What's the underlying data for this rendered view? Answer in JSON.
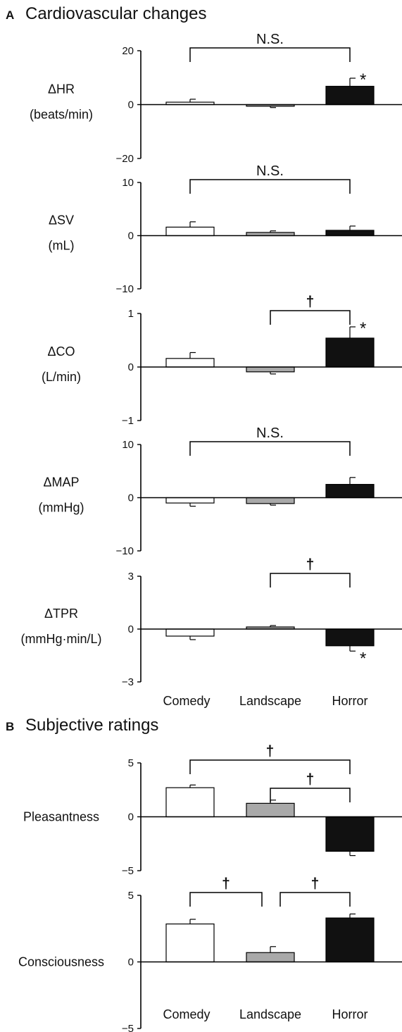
{
  "sections": [
    {
      "letter": "A",
      "title": "Cardiovascular changes"
    },
    {
      "letter": "B",
      "title": "Subjective ratings"
    }
  ],
  "colors": {
    "comedy": "#ffffff",
    "landscape": "#a9a9a9",
    "horror": "#111111",
    "axis": "#000000"
  },
  "chart_data": [
    {
      "type": "bar",
      "section": "A",
      "categories": [
        "Comedy",
        "Landscape",
        "Horror"
      ],
      "ylabel": [
        "ΔHR",
        "(beats/min)"
      ],
      "yticks": [
        20,
        0,
        -20
      ],
      "ylim": [
        -20,
        20
      ],
      "values": [
        0.9,
        -0.6,
        6.8
      ],
      "errors": [
        1.1,
        0.5,
        3.0
      ],
      "bar_annotations": [
        "",
        "",
        "*"
      ],
      "comparisons": [
        {
          "from": "Comedy",
          "to": "Horror",
          "label": "N.S."
        }
      ],
      "show_category_labels": false
    },
    {
      "type": "bar",
      "section": "A",
      "categories": [
        "Comedy",
        "Landscape",
        "Horror"
      ],
      "ylabel": [
        "ΔSV",
        "(mL)"
      ],
      "yticks": [
        10,
        0,
        -10
      ],
      "ylim": [
        -10,
        10
      ],
      "values": [
        1.6,
        0.6,
        1.0
      ],
      "errors": [
        1.0,
        0.3,
        0.8
      ],
      "bar_annotations": [
        "",
        "",
        ""
      ],
      "comparisons": [
        {
          "from": "Comedy",
          "to": "Horror",
          "label": "N.S."
        }
      ],
      "show_category_labels": false
    },
    {
      "type": "bar",
      "section": "A",
      "categories": [
        "Comedy",
        "Landscape",
        "Horror"
      ],
      "ylabel": [
        "ΔCO",
        "(L/min)"
      ],
      "yticks": [
        1,
        0,
        -1
      ],
      "ylim": [
        -1,
        1
      ],
      "values": [
        0.16,
        -0.09,
        0.54
      ],
      "errors": [
        0.11,
        0.04,
        0.21
      ],
      "bar_annotations": [
        "",
        "",
        "*"
      ],
      "comparisons": [
        {
          "from": "Landscape",
          "to": "Horror",
          "label": "†"
        }
      ],
      "show_category_labels": false
    },
    {
      "type": "bar",
      "section": "A",
      "categories": [
        "Comedy",
        "Landscape",
        "Horror"
      ],
      "ylabel": [
        "ΔMAP",
        "(mmHg)"
      ],
      "yticks": [
        10,
        0,
        -10
      ],
      "ylim": [
        -10,
        10
      ],
      "values": [
        -1.0,
        -1.1,
        2.5
      ],
      "errors": [
        0.6,
        0.3,
        1.3
      ],
      "bar_annotations": [
        "",
        "",
        ""
      ],
      "comparisons": [
        {
          "from": "Comedy",
          "to": "Horror",
          "label": "N.S."
        }
      ],
      "show_category_labels": false
    },
    {
      "type": "bar",
      "section": "A",
      "categories": [
        "Comedy",
        "Landscape",
        "Horror"
      ],
      "ylabel": [
        "ΔTPR",
        "(mmHg·min/L)"
      ],
      "yticks": [
        3,
        0,
        -3
      ],
      "ylim": [
        -3,
        3
      ],
      "values": [
        -0.4,
        0.12,
        -0.95
      ],
      "errors": [
        0.2,
        0.08,
        0.3
      ],
      "bar_annotations": [
        "",
        "",
        "*"
      ],
      "comparisons": [
        {
          "from": "Landscape",
          "to": "Horror",
          "label": "†"
        }
      ],
      "show_category_labels": true
    },
    {
      "type": "bar",
      "section": "B",
      "categories": [
        "Comedy",
        "Landscape",
        "Horror"
      ],
      "ylabel": [
        "Pleasantness"
      ],
      "yticks": [
        5,
        0,
        -5
      ],
      "ylim": [
        -5,
        5
      ],
      "values": [
        2.7,
        1.25,
        -3.2
      ],
      "errors": [
        0.25,
        0.3,
        0.4
      ],
      "bar_annotations": [
        "",
        "",
        ""
      ],
      "comparisons": [
        {
          "from": "Comedy",
          "to": "Horror",
          "label": "†"
        },
        {
          "from": "Landscape",
          "to": "Horror",
          "label": "†"
        }
      ],
      "show_category_labels": false
    },
    {
      "type": "bar",
      "section": "B",
      "categories": [
        "Comedy",
        "Landscape",
        "Horror"
      ],
      "ylabel": [
        "Consciousness"
      ],
      "yticks": [
        5,
        0,
        -5
      ],
      "ylim": [
        -5,
        5
      ],
      "values": [
        2.85,
        0.7,
        3.3
      ],
      "errors": [
        0.35,
        0.45,
        0.3
      ],
      "bar_annotations": [
        "",
        "",
        ""
      ],
      "comparisons": [
        {
          "from": "Comedy",
          "to": "Landscape",
          "label": "†"
        },
        {
          "from": "Landscape",
          "to": "Horror",
          "label": "†"
        }
      ],
      "show_category_labels": true
    }
  ]
}
